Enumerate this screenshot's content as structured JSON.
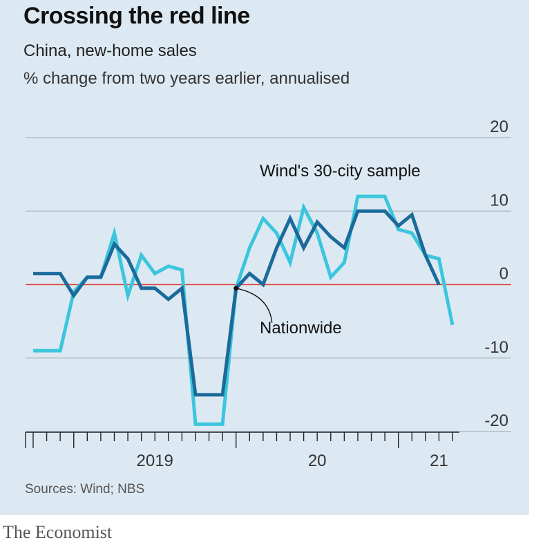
{
  "header": {
    "title": "Crossing the red line",
    "subtitle": "China, new-home sales",
    "unit": "% change from two years earlier, annualised"
  },
  "footer": {
    "source": "Sources: Wind; NBS",
    "brand": "The Economist"
  },
  "colors": {
    "background": "#dde9f2",
    "nationwide": "#1b6a9b",
    "wind": "#3cc6dd",
    "zero_line": "#d9473f",
    "grid": "#a9b4bc"
  },
  "chart_data": {
    "type": "line",
    "title": "Crossing the red line",
    "subtitle": "China, new-home sales",
    "ylabel": "% change from two years earlier, annualised",
    "ylim": [
      -20,
      20
    ],
    "y_ticks": [
      20,
      10,
      0,
      -10,
      -20
    ],
    "x_start": "2018-10",
    "x_end": "2021-05",
    "x_tick_labels": [
      {
        "label": "2019",
        "date": "2019-07"
      },
      {
        "label": "20",
        "date": "2020-07"
      },
      {
        "label": "21",
        "date": "2021-04"
      }
    ],
    "reference_line": {
      "y": 0,
      "color": "#d9473f"
    },
    "grid": true,
    "series": [
      {
        "name": "Nationwide",
        "color": "#1b6a9b",
        "x": [
          "2018-10",
          "2018-11",
          "2018-12",
          "2019-01",
          "2019-02",
          "2019-03",
          "2019-04",
          "2019-05",
          "2019-06",
          "2019-07",
          "2019-08",
          "2019-09",
          "2019-10",
          "2019-11",
          "2019-12",
          "2020-01",
          "2020-02",
          "2020-03",
          "2020-04",
          "2020-05",
          "2020-06",
          "2020-07",
          "2020-08",
          "2020-09",
          "2020-10",
          "2020-11",
          "2020-12",
          "2021-01",
          "2021-02",
          "2021-03",
          "2021-04",
          "2021-05"
        ],
        "values": [
          1.5,
          1.5,
          1.5,
          -1.5,
          1,
          1,
          5.5,
          3.5,
          -0.5,
          -0.5,
          -2,
          -0.5,
          -15,
          -15,
          -15,
          -0.5,
          1.5,
          0,
          5,
          9,
          5,
          8.5,
          6.5,
          5,
          10,
          10,
          10,
          8,
          9.5,
          4,
          0,
          null
        ]
      },
      {
        "name": "Wind's 30-city sample",
        "color": "#3cc6dd",
        "x": [
          "2018-10",
          "2018-11",
          "2018-12",
          "2019-01",
          "2019-02",
          "2019-03",
          "2019-04",
          "2019-05",
          "2019-06",
          "2019-07",
          "2019-08",
          "2019-09",
          "2019-10",
          "2019-11",
          "2019-12",
          "2020-01",
          "2020-02",
          "2020-03",
          "2020-04",
          "2020-05",
          "2020-06",
          "2020-07",
          "2020-08",
          "2020-09",
          "2020-10",
          "2020-11",
          "2020-12",
          "2021-01",
          "2021-02",
          "2021-03",
          "2021-04",
          "2021-05"
        ],
        "values": [
          -9,
          -9,
          -9,
          -1,
          1,
          1,
          7,
          -1.5,
          4,
          1.5,
          2.5,
          2,
          -19,
          -19,
          -19,
          -0.5,
          5,
          9,
          7,
          3,
          10.5,
          7,
          1,
          3,
          12,
          12,
          12,
          7.5,
          7,
          4,
          3.5,
          -5.5
        ]
      }
    ],
    "annotations": [
      {
        "text": "Wind's 30-city sample",
        "series": 1
      },
      {
        "text": "Nationwide",
        "series": 0,
        "points_to": "2020-01"
      }
    ]
  }
}
